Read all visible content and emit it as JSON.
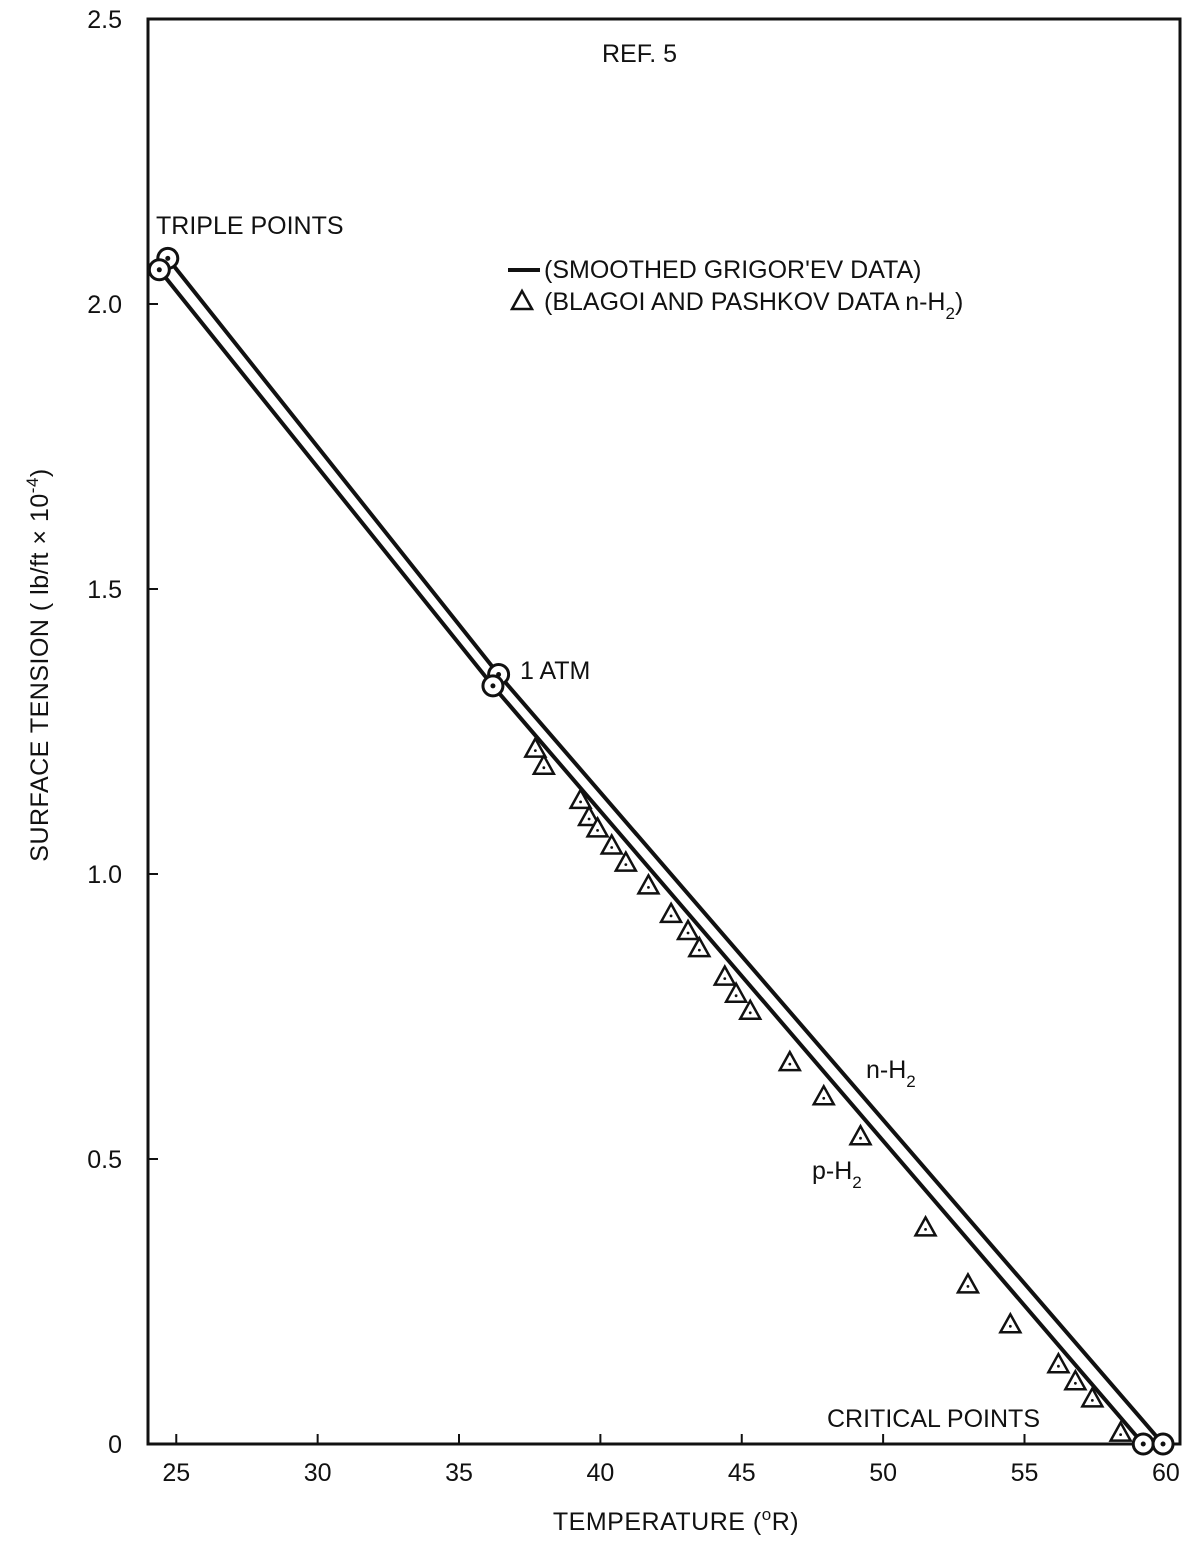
{
  "chart_data": {
    "type": "line",
    "xlabel": "TEMPERATURE (°R)",
    "xlabel_parts": {
      "prefix": "TEMPERATURE (",
      "sup": "o",
      "suffix": "R)"
    },
    "ylabel": "SURFACE TENSION (lb/ft × 10^-4)",
    "ylabel_parts": {
      "prefix": "SURFACE TENSION ( lb/ft × 10",
      "sup": "-4",
      "suffix": ")"
    },
    "xlim": [
      24,
      60.5
    ],
    "ylim": [
      0,
      2.5
    ],
    "x_ticks": [
      25,
      30,
      35,
      40,
      45,
      50,
      55,
      60
    ],
    "x_tick_labels": [
      "25",
      "30",
      "35",
      "40",
      "45",
      "50",
      "55",
      "60"
    ],
    "y_ticks": [
      0,
      0.5,
      1.0,
      1.5,
      2.0,
      2.5
    ],
    "y_tick_labels": [
      "0",
      "0.5",
      "1.0",
      "1.5",
      "2.0",
      "2.5"
    ],
    "grid": false,
    "legend": {
      "placement": "top-right",
      "entries": [
        {
          "marker": "line",
          "label": "(SMOOTHED GRIGOR'EV DATA)"
        },
        {
          "marker": "triangle",
          "prefix": "(BLAGOI AND PASHKOV DATA n-H",
          "sub": "2",
          "suffix": ")"
        }
      ]
    },
    "series": [
      {
        "name": "n-H2",
        "label_parts": {
          "prefix": "n-H",
          "sub": "2"
        },
        "kind": "line",
        "x": [
          24.7,
          36.4,
          59.9
        ],
        "y": [
          2.08,
          1.35,
          0.0
        ]
      },
      {
        "name": "p-H2",
        "label_parts": {
          "prefix": "p-H",
          "sub": "2"
        },
        "kind": "line",
        "x": [
          24.4,
          36.2,
          59.2
        ],
        "y": [
          2.06,
          1.33,
          0.0
        ]
      },
      {
        "name": "BLAGOI AND PASHKOV DATA n-H2",
        "kind": "scatter",
        "marker": "triangle",
        "x": [
          37.7,
          38.0,
          39.3,
          39.6,
          39.9,
          40.4,
          40.9,
          41.7,
          42.5,
          43.1,
          43.5,
          44.4,
          44.8,
          45.3,
          46.7,
          47.9,
          49.2,
          51.5,
          53.0,
          54.5,
          56.2,
          56.8,
          57.4,
          58.4
        ],
        "y": [
          1.22,
          1.19,
          1.13,
          1.1,
          1.08,
          1.05,
          1.02,
          0.98,
          0.93,
          0.9,
          0.87,
          0.82,
          0.79,
          0.76,
          0.67,
          0.61,
          0.54,
          0.38,
          0.28,
          0.21,
          0.14,
          0.11,
          0.08,
          0.02
        ]
      }
    ],
    "markers": [
      {
        "name": "triple-point-n-h2",
        "x": 24.7,
        "y": 2.08
      },
      {
        "name": "triple-point-p-h2",
        "x": 24.4,
        "y": 2.06
      },
      {
        "name": "1-atm-n-h2",
        "x": 36.4,
        "y": 1.35
      },
      {
        "name": "1-atm-p-h2",
        "x": 36.2,
        "y": 1.33
      },
      {
        "name": "critical-point-p-h2",
        "x": 59.2,
        "y": 0.0
      },
      {
        "name": "critical-point-n-h2",
        "x": 59.9,
        "y": 0.0
      }
    ],
    "annotations": [
      {
        "name": "ref-label",
        "text": "REF. 5"
      },
      {
        "name": "triple-points-label",
        "text": "TRIPLE POINTS"
      },
      {
        "name": "1-atm-label",
        "text": "1 ATM"
      },
      {
        "name": "critical-points-label",
        "text": "CRITICAL POINTS"
      }
    ]
  }
}
